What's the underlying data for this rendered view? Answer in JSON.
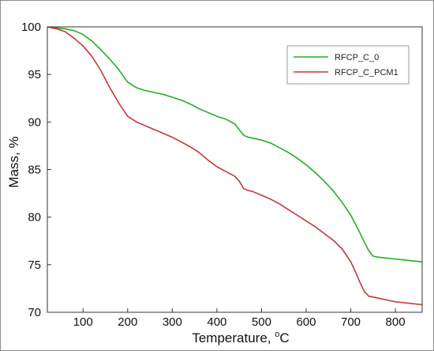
{
  "chart_data": {
    "type": "line",
    "xlabel": "Temperature, °C",
    "xlabel_parts": [
      "Temperature, ",
      "o",
      "C"
    ],
    "ylabel": "Mass, %",
    "xlim": [
      20,
      860
    ],
    "ylim": [
      70,
      100
    ],
    "x_ticks": [
      100,
      200,
      300,
      400,
      500,
      600,
      700,
      800
    ],
    "y_ticks": [
      70,
      75,
      80,
      85,
      90,
      95,
      100
    ],
    "grid": false,
    "legend_position": "top-right",
    "series": [
      {
        "name": "RFCP_C_0",
        "color": "#22b022",
        "x": [
          20,
          40,
          60,
          80,
          100,
          120,
          140,
          160,
          180,
          200,
          220,
          240,
          260,
          280,
          300,
          320,
          340,
          360,
          380,
          400,
          420,
          440,
          450,
          460,
          470,
          480,
          500,
          520,
          540,
          560,
          580,
          600,
          620,
          640,
          660,
          680,
          700,
          720,
          730,
          740,
          750,
          760,
          780,
          800,
          820,
          840,
          860
        ],
        "values": [
          100,
          99.9,
          99.8,
          99.6,
          99.2,
          98.5,
          97.6,
          96.6,
          95.5,
          94.2,
          93.6,
          93.3,
          93.1,
          92.9,
          92.6,
          92.3,
          91.9,
          91.4,
          91.0,
          90.6,
          90.3,
          89.8,
          89.2,
          88.6,
          88.4,
          88.3,
          88.1,
          87.8,
          87.3,
          86.8,
          86.2,
          85.5,
          84.7,
          83.8,
          82.8,
          81.6,
          80.2,
          78.4,
          77.4,
          76.5,
          75.9,
          75.8,
          75.7,
          75.6,
          75.5,
          75.4,
          75.3
        ]
      },
      {
        "name": "RFCP_C_PCM1",
        "color": "#c8373a",
        "x": [
          20,
          40,
          60,
          80,
          100,
          120,
          140,
          160,
          180,
          200,
          210,
          220,
          240,
          260,
          280,
          300,
          320,
          340,
          360,
          380,
          400,
          420,
          440,
          450,
          460,
          470,
          480,
          500,
          520,
          540,
          560,
          580,
          600,
          620,
          640,
          660,
          680,
          700,
          710,
          720,
          730,
          740,
          760,
          780,
          800,
          820,
          840,
          860
        ],
        "values": [
          100,
          99.8,
          99.5,
          98.8,
          98.0,
          96.9,
          95.4,
          93.6,
          92.0,
          90.6,
          90.3,
          90.0,
          89.6,
          89.2,
          88.8,
          88.4,
          87.9,
          87.4,
          86.8,
          86.0,
          85.3,
          84.8,
          84.3,
          83.8,
          83.0,
          82.8,
          82.7,
          82.3,
          81.9,
          81.4,
          80.8,
          80.2,
          79.6,
          79.0,
          78.3,
          77.6,
          76.7,
          75.3,
          74.3,
          73.2,
          72.2,
          71.7,
          71.5,
          71.3,
          71.1,
          71.0,
          70.9,
          70.8
        ]
      }
    ]
  }
}
